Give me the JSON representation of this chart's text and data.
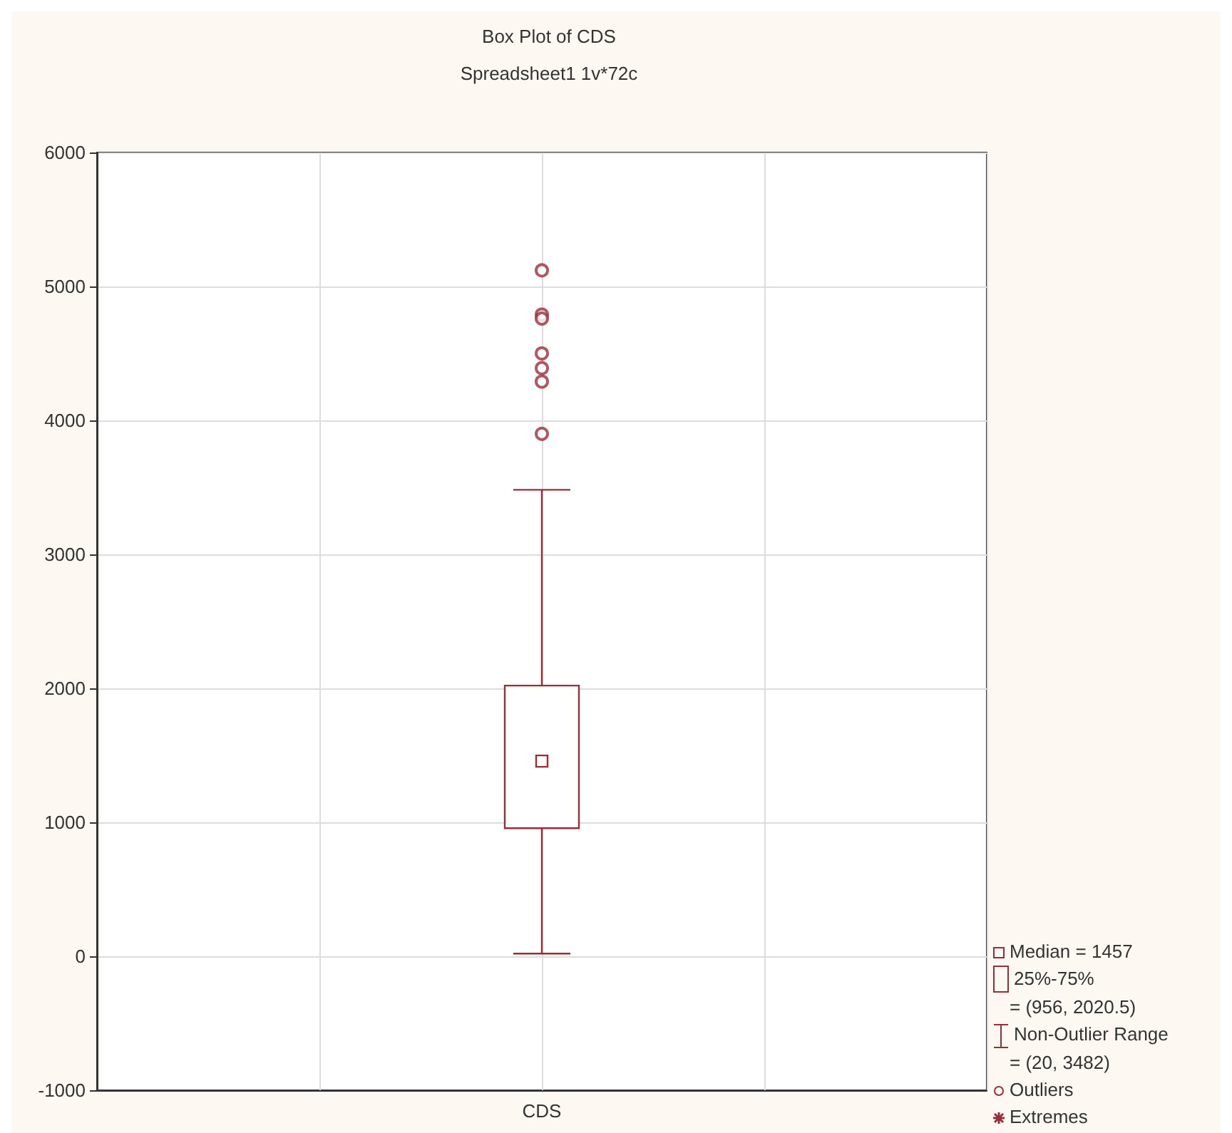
{
  "chart_data": {
    "type": "box",
    "title": "Box Plot of CDS",
    "subtitle": "Spreadsheet1 1v*72c",
    "categories": [
      "CDS"
    ],
    "series": [
      {
        "color": "#9b2d3b",
        "boxes": [
          {
            "low": 20,
            "q1": 956,
            "median": 1457,
            "q3": 2020.5,
            "high": 3482,
            "outliers": [
              5120,
              4790,
              4760,
              4500,
              4390,
              4290,
              3900
            ]
          }
        ]
      }
    ],
    "ylim": [
      -1000,
      6000
    ],
    "yticks": [
      -1000,
      0,
      1000,
      2000,
      3000,
      4000,
      5000,
      6000
    ],
    "grid": true,
    "annotations": [
      "Median = 1457",
      "25%-75%",
      "= (956, 2020.5)",
      "Non-Outlier Range",
      "= (20, 3482)",
      "Outliers",
      "Extremes"
    ]
  }
}
